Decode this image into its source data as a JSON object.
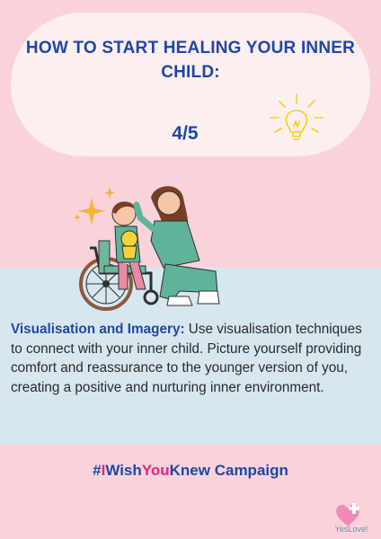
{
  "header": {
    "title": "HOW TO START HEALING YOUR INNER CHILD:",
    "counter": "4/5"
  },
  "content": {
    "lead": "Visualisation and Imagery:",
    "body": " Use visualisation techniques to connect with your inner child. Picture yourself providing comfort and reassurance to the younger version of you, creating a positive and nurturing inner environment."
  },
  "campaign": {
    "hash": "#",
    "i": "I",
    "wish": "Wish",
    "you": "You",
    "knew": "Knew",
    "word": " Campaign"
  },
  "brand": {
    "name": "YesLove!"
  },
  "colors": {
    "background": "#f9d3d9",
    "pill": "#fdeef0",
    "band": "#d6e7ef",
    "primary": "#1e47a8",
    "accent": "#e8247a"
  },
  "icons": [
    "lightbulb-icon",
    "heart-plus-icon",
    "sparkle-icon"
  ]
}
